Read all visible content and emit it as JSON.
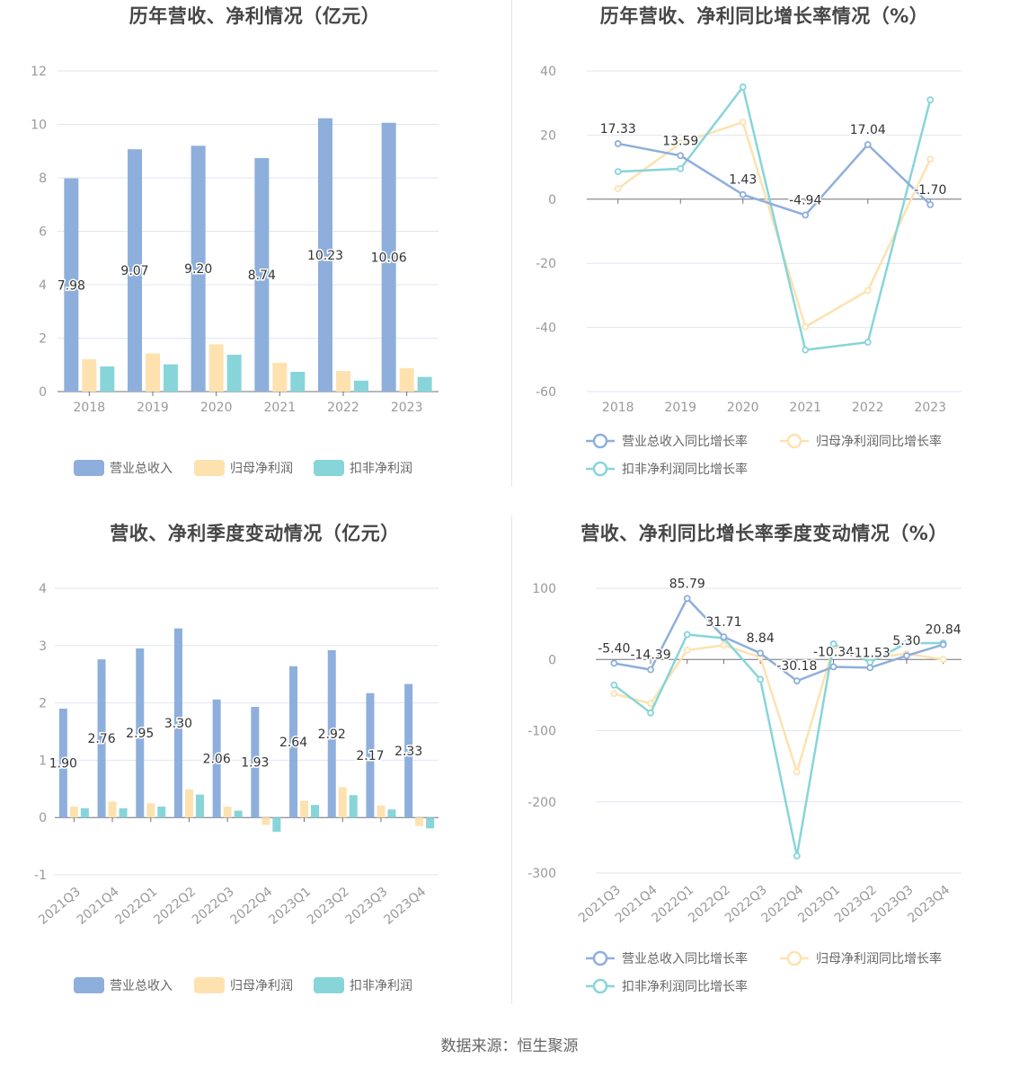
{
  "source": "数据来源：恒生聚源",
  "colors": {
    "revenue": "#8eafdc",
    "netprofit": "#fde2b0",
    "deducted": "#87d5d9"
  },
  "chart_data": [
    {
      "id": "annual_bar",
      "type": "bar",
      "title": "历年营收、净利情况（亿元）",
      "categories": [
        "2018",
        "2019",
        "2020",
        "2021",
        "2022",
        "2023"
      ],
      "ylim": [
        0,
        12
      ],
      "yticks": [
        0,
        2,
        4,
        6,
        8,
        10,
        12
      ],
      "grid": true,
      "legend_position": "bottom",
      "series": [
        {
          "name": "营业总收入",
          "values": [
            7.98,
            9.07,
            9.2,
            8.74,
            10.23,
            10.06
          ],
          "labels": [
            "7.98",
            "9.07",
            "9.20",
            "8.74",
            "10.23",
            "10.06"
          ]
        },
        {
          "name": "归母净利润",
          "values": [
            1.21,
            1.43,
            1.77,
            1.08,
            0.77,
            0.88
          ]
        },
        {
          "name": "扣非净利润",
          "values": [
            0.94,
            1.02,
            1.38,
            0.74,
            0.41,
            0.55
          ]
        }
      ]
    },
    {
      "id": "annual_growth",
      "type": "line",
      "title": "历年营收、净利同比增长率情况（%）",
      "categories": [
        "2018",
        "2019",
        "2020",
        "2021",
        "2022",
        "2023"
      ],
      "ylim": [
        -60,
        40
      ],
      "yticks": [
        -60,
        -40,
        -20,
        0,
        20,
        40
      ],
      "grid": true,
      "legend_position": "bottom",
      "series": [
        {
          "name": "营业总收入同比增长率",
          "values": [
            17.33,
            13.59,
            1.43,
            -4.94,
            17.04,
            -1.7
          ],
          "labels": [
            "17.33",
            "13.59",
            "1.43",
            "-4.94",
            "17.04",
            "-1.70"
          ]
        },
        {
          "name": "归母净利润同比增长率",
          "values": [
            3.3,
            17.5,
            24.0,
            -39.8,
            -28.5,
            12.5
          ]
        },
        {
          "name": "扣非净利润同比增长率",
          "values": [
            8.6,
            9.5,
            35.0,
            -47.0,
            -44.6,
            31.0
          ]
        }
      ]
    },
    {
      "id": "quarter_bar",
      "type": "bar",
      "title": "营收、净利季度变动情况（亿元）",
      "categories": [
        "2021Q3",
        "2021Q4",
        "2022Q1",
        "2022Q2",
        "2022Q3",
        "2022Q4",
        "2023Q1",
        "2023Q2",
        "2023Q3",
        "2023Q4"
      ],
      "ylim": [
        -1,
        4
      ],
      "yticks": [
        -1,
        0,
        1,
        2,
        3,
        4
      ],
      "grid": true,
      "legend_position": "bottom",
      "series": [
        {
          "name": "营业总收入",
          "values": [
            1.9,
            2.76,
            2.95,
            3.3,
            2.06,
            1.93,
            2.64,
            2.92,
            2.17,
            2.33
          ],
          "labels": [
            "1.90",
            "2.76",
            "2.95",
            "3.30",
            "2.06",
            "1.93",
            "2.64",
            "2.92",
            "2.17",
            "2.33"
          ]
        },
        {
          "name": "归母净利润",
          "values": [
            0.19,
            0.28,
            0.25,
            0.49,
            0.19,
            -0.13,
            0.29,
            0.53,
            0.21,
            -0.15
          ]
        },
        {
          "name": "扣非净利润",
          "values": [
            0.16,
            0.16,
            0.19,
            0.4,
            0.12,
            -0.25,
            0.22,
            0.39,
            0.14,
            -0.19
          ]
        }
      ]
    },
    {
      "id": "quarter_growth",
      "type": "line",
      "title": "营收、净利同比增长率季度变动情况（%）",
      "categories": [
        "2021Q3",
        "2021Q4",
        "2022Q1",
        "2022Q2",
        "2022Q3",
        "2022Q4",
        "2023Q1",
        "2023Q2",
        "2023Q3",
        "2023Q4"
      ],
      "ylim": [
        -300,
        100
      ],
      "yticks": [
        -300,
        -200,
        -100,
        0,
        100
      ],
      "grid": true,
      "legend_position": "bottom",
      "series": [
        {
          "name": "营业总收入同比增长率",
          "values": [
            -5.4,
            -14.39,
            85.79,
            31.71,
            8.84,
            -30.18,
            -10.34,
            -11.53,
            5.3,
            20.84
          ],
          "labels": [
            "-5.40",
            "-14.39",
            "85.79",
            "31.71",
            "8.84",
            "-30.18",
            "-10.34",
            "-11.53",
            "5.30",
            "20.84"
          ]
        },
        {
          "name": "归母净利润同比增长率",
          "values": [
            -48,
            -62,
            13,
            20,
            3,
            -158,
            18,
            2,
            8,
            0
          ]
        },
        {
          "name": "扣非净利润同比增长率",
          "values": [
            -36,
            -75,
            35,
            30,
            -28,
            -276,
            22,
            -4,
            23,
            23
          ]
        }
      ]
    }
  ]
}
